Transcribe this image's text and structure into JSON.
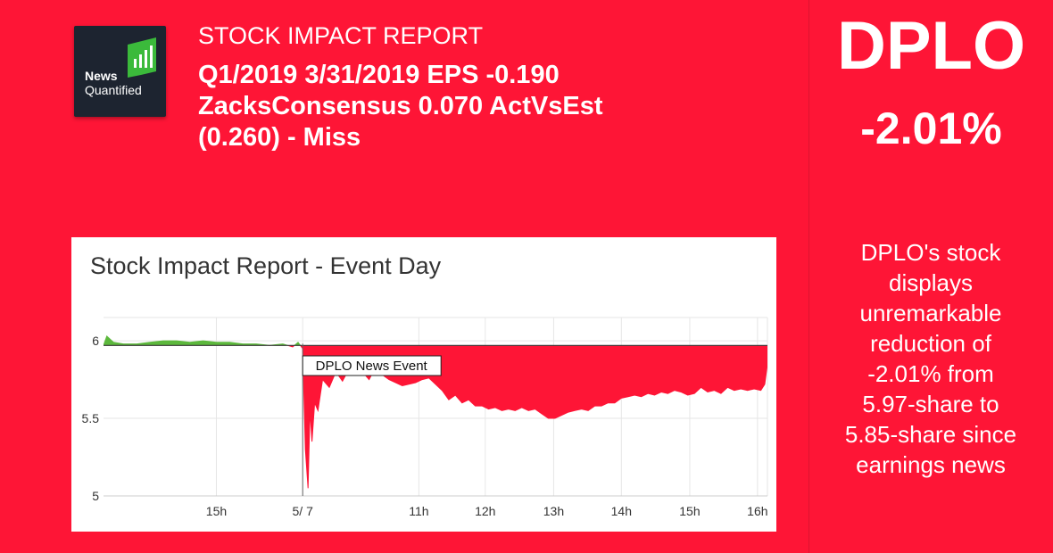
{
  "brand": {
    "logo_word1": "News",
    "logo_word2": "Quantified",
    "logo_icon": "bar-chart-icon",
    "logo_accent": "#3bba3b"
  },
  "header": {
    "report_label": "STOCK IMPACT REPORT",
    "headline_lines": [
      "Q1/2019 3/31/2019 EPS -0.190",
      "ZacksConsensus 0.070 ActVsEst",
      "(0.260) - Miss"
    ]
  },
  "sidebar": {
    "ticker": "DPLO",
    "change": "-2.01%",
    "summary_lines": [
      "DPLO's stock",
      "displays",
      "unremarkable",
      "reduction of",
      "-2.01% from",
      "5.97-share to",
      "5.85-share since",
      "earnings news"
    ]
  },
  "colors": {
    "background": "#fe1536",
    "loss_fill": "#fe1536",
    "gain_fill": "#5cb83c",
    "baseline": "#333333",
    "grid": "#e6e6e6"
  },
  "chart_data": {
    "type": "area",
    "title": "Stock Impact Report - Event Day",
    "xlabel": "",
    "ylabel": "",
    "baseline": 5.97,
    "ylim": [
      5,
      6.15
    ],
    "xlim": [
      0,
      100
    ],
    "y_ticks": [
      {
        "value": 6,
        "label": "6"
      },
      {
        "value": 5.5,
        "label": "5.5"
      },
      {
        "value": 5,
        "label": "5"
      }
    ],
    "x_ticks": [
      {
        "x": 17,
        "label": "15h"
      },
      {
        "x": 30,
        "label": "5/ 7"
      },
      {
        "x": 47.5,
        "label": "11h"
      },
      {
        "x": 57.5,
        "label": "12h"
      },
      {
        "x": 67.8,
        "label": "13h"
      },
      {
        "x": 78,
        "label": "14h"
      },
      {
        "x": 88.3,
        "label": "15h"
      },
      {
        "x": 98.5,
        "label": "16h"
      }
    ],
    "annotation": {
      "x": 30,
      "label": "DPLO News Event"
    },
    "grid": true,
    "legend": "none",
    "series": [
      {
        "x": [
          0,
          0.5,
          1.5,
          3,
          5,
          7,
          9,
          11,
          13,
          15,
          17,
          19,
          21,
          23,
          25,
          27,
          28.5,
          29.3,
          30,
          30.4,
          30.8,
          31.1,
          31.4,
          31.8,
          32.3,
          33,
          34,
          35,
          36,
          37,
          38,
          39,
          40,
          41,
          42,
          43,
          44,
          45,
          46,
          47,
          48,
          49,
          50,
          51,
          52,
          53,
          54,
          55,
          56,
          57,
          58,
          59,
          60,
          61,
          62,
          63,
          64,
          65,
          66,
          67,
          68,
          69,
          70,
          71,
          72,
          73,
          74,
          75,
          76,
          77,
          78,
          79,
          80,
          81,
          82,
          83,
          84,
          85,
          86,
          87,
          88,
          89,
          90,
          91,
          92,
          93,
          94,
          95,
          96,
          97,
          98,
          99,
          99.6,
          100
        ],
        "y": [
          5.97,
          6.03,
          5.99,
          5.98,
          5.98,
          5.99,
          6.0,
          6.0,
          5.99,
          6.0,
          5.99,
          5.99,
          5.98,
          5.98,
          5.97,
          5.98,
          5.96,
          5.99,
          5.95,
          5.3,
          5.05,
          5.55,
          5.35,
          5.6,
          5.55,
          5.75,
          5.7,
          5.8,
          5.74,
          5.82,
          5.78,
          5.8,
          5.75,
          5.83,
          5.78,
          5.75,
          5.73,
          5.71,
          5.72,
          5.73,
          5.75,
          5.76,
          5.72,
          5.68,
          5.62,
          5.65,
          5.6,
          5.62,
          5.58,
          5.58,
          5.56,
          5.57,
          5.55,
          5.56,
          5.55,
          5.57,
          5.55,
          5.56,
          5.53,
          5.5,
          5.5,
          5.52,
          5.54,
          5.55,
          5.56,
          5.55,
          5.58,
          5.58,
          5.6,
          5.6,
          5.63,
          5.64,
          5.65,
          5.64,
          5.66,
          5.65,
          5.67,
          5.66,
          5.68,
          5.67,
          5.65,
          5.66,
          5.7,
          5.67,
          5.68,
          5.66,
          5.7,
          5.68,
          5.69,
          5.68,
          5.69,
          5.68,
          5.72,
          5.85
        ]
      }
    ]
  }
}
